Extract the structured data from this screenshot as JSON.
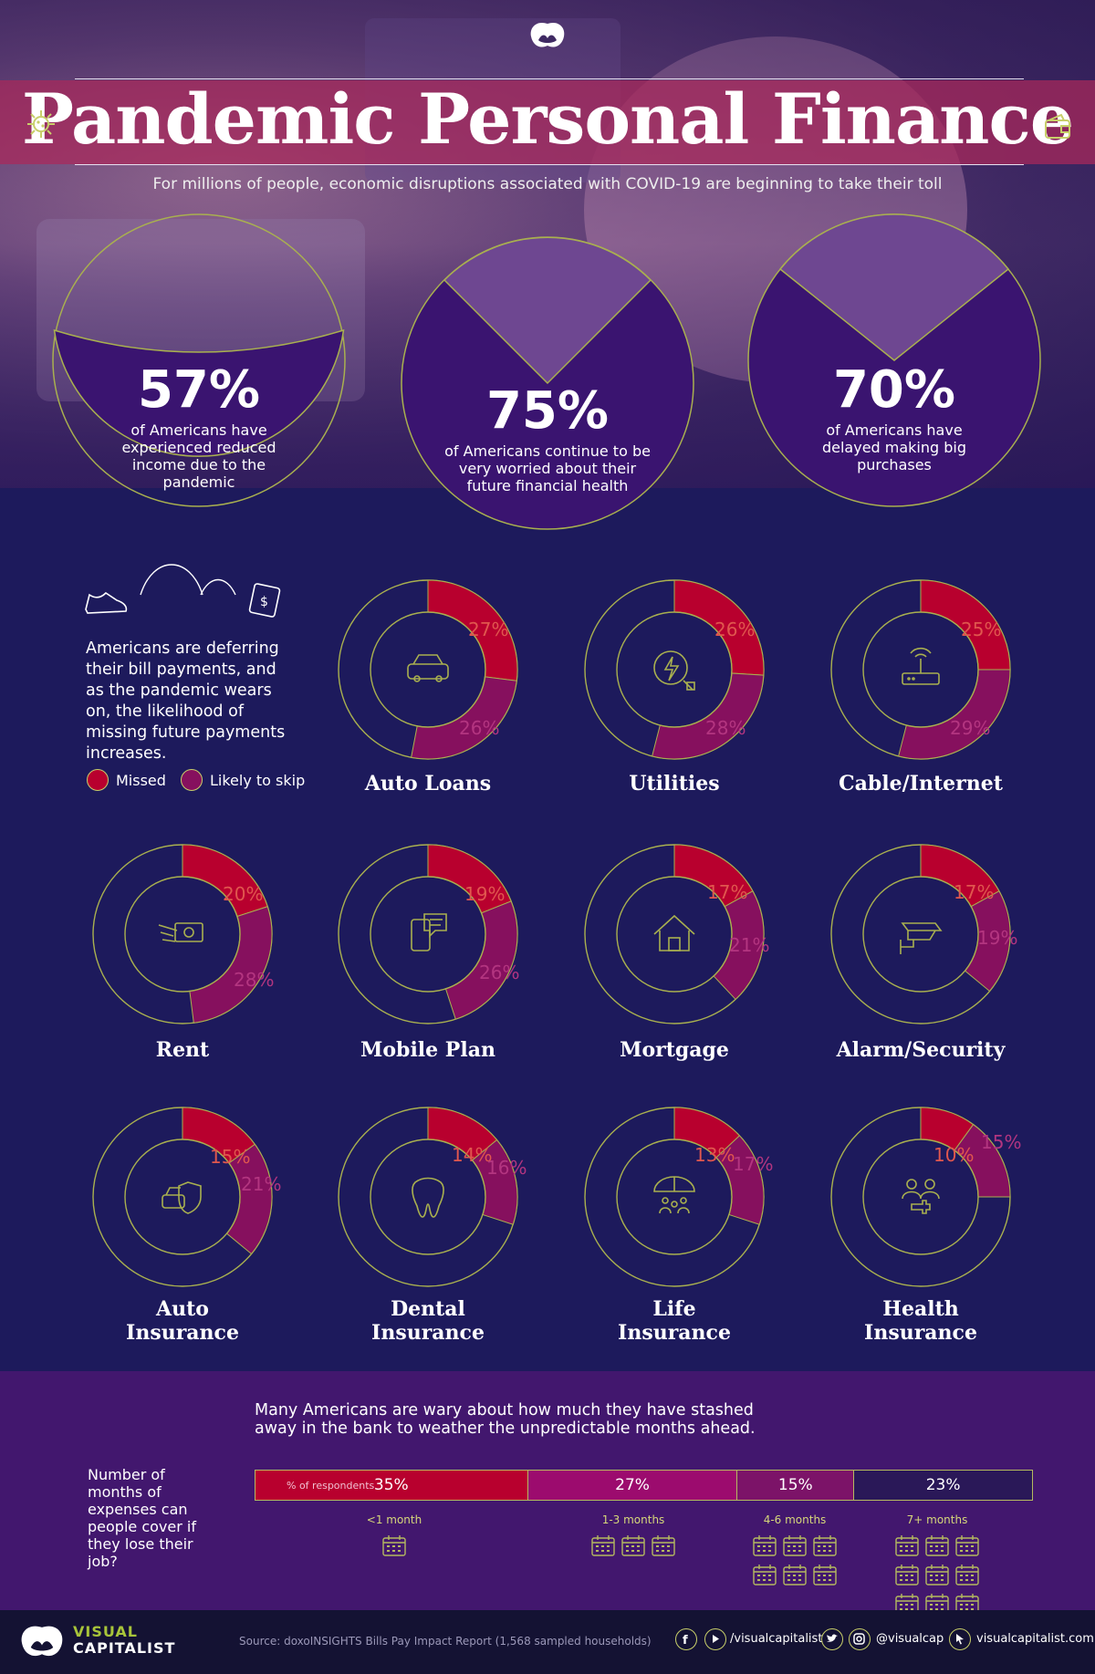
{
  "header": {
    "title": "Pandemic Personal Finance",
    "subtitle": "For millions of people, economic disruptions associated with COVID-19 are beginning to take their toll"
  },
  "stats": [
    {
      "pct": "57%",
      "text": "of Americans have experienced reduced income due to the pandemic"
    },
    {
      "pct": "75%",
      "text": "of Americans continue to be very worried about their future financial health"
    },
    {
      "pct": "70%",
      "text": "of Americans have delayed making big purchases"
    }
  ],
  "intro": {
    "text": "Americans are deferring their bill payments, and as the pandemic wears on, the likelihood of missing future payments increases.",
    "legend_missed": "Missed",
    "legend_likely": "Likely to skip"
  },
  "colors": {
    "missed": "#b8002e",
    "likely": "#86105e",
    "ring": "#a9b04f",
    "background": "#1d1a5c",
    "seg_lt1": "#b8002e",
    "seg_1_3": "#9c0b6e",
    "seg_4_6": "#7c1368",
    "seg_7p": "#2a1858"
  },
  "chart_data": [
    {
      "type": "pie",
      "categories": [
        "Auto Loans",
        "Utilities",
        "Cable/Internet",
        "Rent",
        "Mobile Plan",
        "Mortgage",
        "Alarm/Security",
        "Auto Insurance",
        "Dental Insurance",
        "Life Insurance",
        "Health Insurance"
      ],
      "series": [
        {
          "name": "Missed",
          "values": [
            27,
            26,
            25,
            20,
            19,
            17,
            17,
            15,
            14,
            13,
            10
          ]
        },
        {
          "name": "Likely to skip",
          "values": [
            26,
            28,
            29,
            28,
            26,
            21,
            19,
            21,
            16,
            17,
            15
          ]
        }
      ],
      "labels_missed": [
        "27%",
        "26%",
        "25%",
        "20%",
        "19%",
        "17%",
        "17%",
        "15%",
        "14%",
        "13%",
        "10%"
      ],
      "labels_likely": [
        "26%",
        "28%",
        "29%",
        "28%",
        "26%",
        "21%",
        "19%",
        "21%",
        "16%",
        "17%",
        "15%"
      ],
      "icons": [
        "car-icon",
        "electricity-plug-icon",
        "router-icon",
        "cash-hand-icon",
        "phone-chat-icon",
        "house-icon",
        "security-camera-icon",
        "car-shield-icon",
        "tooth-icon",
        "umbrella-family-icon",
        "medical-cross-people-icon"
      ]
    },
    {
      "type": "bar",
      "title": "Many Americans are wary about how much they have stashed away in the bank to weather the unpredictable months ahead.",
      "ylabel": "Number of months of expenses can people cover if they lose their job?",
      "series_label": "% of respondents",
      "categories": [
        "<1 month",
        "1-3 months",
        "4-6 months",
        "7+ months"
      ],
      "values": [
        35,
        27,
        15,
        23
      ],
      "value_labels": [
        "35%",
        "27%",
        "15%",
        "23%"
      ],
      "calendar_counts": [
        1,
        3,
        6,
        9
      ]
    }
  ],
  "footer": {
    "brand_top": "VISUAL",
    "brand_bottom": "CAPITALIST",
    "source": "Source: doxoINSIGHTS Bills Pay Impact Report (1,568 sampled households)",
    "social_1": "/visualcapitalist",
    "social_2": "@visualcap",
    "social_3": "visualcapitalist.com"
  }
}
